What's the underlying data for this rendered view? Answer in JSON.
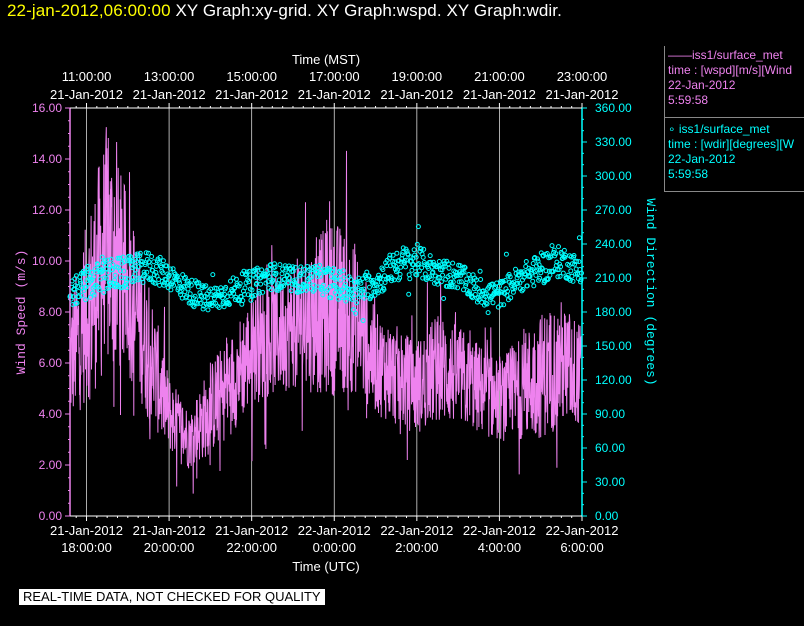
{
  "header": {
    "timestamp": "22-jan-2012,06:00:00",
    "graphs": "XY Graph:xy-grid.  XY Graph:wspd.  XY Graph:wdir."
  },
  "legend": {
    "wspd": {
      "title": "iss1/surface_met",
      "var": "time : [wspd][m/s][Wind",
      "date": "22-Jan-2012",
      "time": "5:59:58"
    },
    "wdir": {
      "title": "iss1/surface_met",
      "var": "time : [wdir][degrees][W",
      "date": "22-Jan-2012",
      "time": "5:59:58"
    }
  },
  "quality_note": "REAL-TIME DATA, NOT CHECKED FOR QUALITY",
  "colors": {
    "wspd": "#ee82ee",
    "wdir": "#00ffff",
    "axes": "#ffffff",
    "header_timestamp": "#ffff00"
  },
  "chart_data": {
    "type": "line",
    "top_axis": {
      "label": "Time (MST)",
      "ticks": [
        {
          "time": "11:00:00",
          "date": "21-Jan-2012"
        },
        {
          "time": "13:00:00",
          "date": "21-Jan-2012"
        },
        {
          "time": "15:00:00",
          "date": "21-Jan-2012"
        },
        {
          "time": "17:00:00",
          "date": "21-Jan-2012"
        },
        {
          "time": "19:00:00",
          "date": "21-Jan-2012"
        },
        {
          "time": "21:00:00",
          "date": "21-Jan-2012"
        },
        {
          "time": "23:00:00",
          "date": "21-Jan-2012"
        }
      ]
    },
    "bottom_axis": {
      "label": "Time (UTC)",
      "ticks": [
        {
          "date": "21-Jan-2012",
          "time": "18:00:00"
        },
        {
          "date": "21-Jan-2012",
          "time": "20:00:00"
        },
        {
          "date": "21-Jan-2012",
          "time": "22:00:00"
        },
        {
          "date": "22-Jan-2012",
          "time": "0:00:00"
        },
        {
          "date": "22-Jan-2012",
          "time": "2:00:00"
        },
        {
          "date": "22-Jan-2012",
          "time": "4:00:00"
        },
        {
          "date": "22-Jan-2012",
          "time": "6:00:00"
        }
      ]
    },
    "xlim_hours_utc": [
      17.6,
      30.0
    ],
    "grid": true,
    "left_axis": {
      "label": "Wind Speed (m/s)",
      "ylim": [
        0,
        16
      ],
      "ticks": [
        "0.00",
        "2.00",
        "4.00",
        "6.00",
        "8.00",
        "10.00",
        "12.00",
        "14.00",
        "16.00"
      ]
    },
    "right_axis": {
      "label": "Wind Direction (degrees)",
      "ylim": [
        0,
        360
      ],
      "ticks": [
        "0.00",
        "30.00",
        "60.00",
        "90.00",
        "120.00",
        "150.00",
        "180.00",
        "210.00",
        "240.00",
        "270.00",
        "300.00",
        "330.00",
        "360.00"
      ]
    },
    "series": [
      {
        "name": "wspd",
        "style": "line",
        "axis": "left",
        "x_hours_utc": [
          17.6,
          18.0,
          18.5,
          19.0,
          19.3,
          19.6,
          20.0,
          20.5,
          21.0,
          21.5,
          22.0,
          22.5,
          23.0,
          23.5,
          24.0,
          24.5,
          25.0,
          25.5,
          26.0,
          26.5,
          27.0,
          27.5,
          28.0,
          28.5,
          29.0,
          29.5,
          30.0
        ],
        "mean": [
          6.0,
          8.0,
          10.5,
          9.0,
          7.5,
          6.0,
          4.0,
          3.0,
          4.2,
          5.2,
          6.5,
          7.0,
          7.5,
          7.8,
          8.2,
          7.8,
          6.0,
          5.5,
          5.0,
          5.8,
          5.5,
          5.0,
          4.5,
          5.0,
          5.5,
          6.0,
          5.5
        ],
        "spread": [
          2.5,
          3.5,
          5.0,
          3.5,
          3.0,
          2.5,
          1.5,
          1.2,
          1.8,
          2.0,
          2.2,
          2.3,
          2.5,
          3.0,
          3.5,
          3.0,
          2.0,
          2.0,
          1.8,
          2.2,
          2.0,
          1.8,
          1.6,
          2.0,
          2.5,
          2.5,
          2.0
        ]
      },
      {
        "name": "wdir",
        "style": "points",
        "axis": "right",
        "x_hours_utc": [
          17.6,
          18.0,
          18.5,
          19.0,
          19.5,
          20.0,
          20.5,
          21.0,
          21.5,
          22.0,
          22.5,
          23.0,
          23.5,
          24.0,
          24.5,
          25.0,
          25.5,
          26.0,
          26.5,
          27.0,
          27.5,
          28.0,
          28.5,
          29.0,
          29.5,
          30.0
        ],
        "mean": [
          195,
          205,
          212,
          215,
          220,
          212,
          198,
          190,
          198,
          205,
          212,
          208,
          210,
          205,
          198,
          205,
          222,
          225,
          215,
          212,
          198,
          195,
          210,
          218,
          225,
          215
        ],
        "spread": [
          12,
          15,
          15,
          14,
          14,
          12,
          12,
          12,
          12,
          12,
          12,
          12,
          12,
          14,
          12,
          12,
          15,
          15,
          12,
          12,
          12,
          12,
          12,
          14,
          14,
          12
        ]
      }
    ]
  }
}
